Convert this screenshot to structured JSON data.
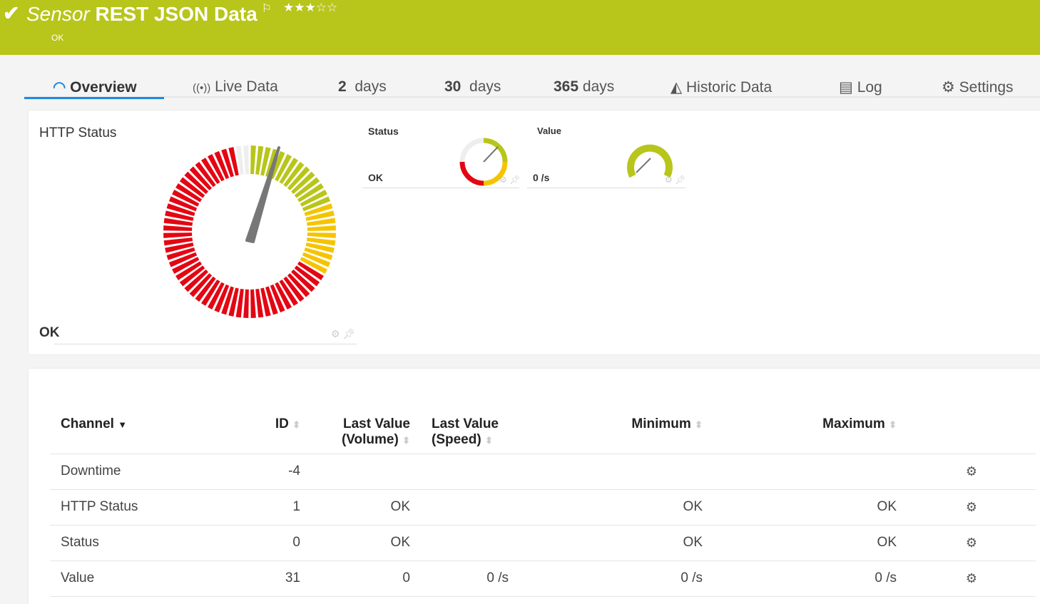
{
  "header": {
    "status_icon": "check-icon",
    "title_prefix": "Sensor",
    "title": "REST JSON Data",
    "flag_icon": "flag-icon",
    "rating": 3,
    "rating_max": 5,
    "rating_text": "★★★☆☆",
    "status": "OK",
    "color": "#b8c51a"
  },
  "tabs": [
    {
      "label": "Overview",
      "icon": "gauge-icon",
      "active": true
    },
    {
      "label": "Live Data",
      "icon": "broadcast-icon"
    },
    {
      "num": "2",
      "label": "days"
    },
    {
      "num": "30",
      "label": "days"
    },
    {
      "num": "365",
      "label": "days"
    },
    {
      "label": "Historic Data",
      "icon": "area-chart-icon"
    },
    {
      "label": "Log",
      "icon": "list-icon"
    },
    {
      "label": "Settings",
      "icon": "gear-icon"
    }
  ],
  "gauges": {
    "main": {
      "title": "HTTP Status",
      "value": "OK"
    },
    "status": {
      "title": "Status",
      "value": "OK"
    },
    "value": {
      "title": "Value",
      "value": "0 /s"
    }
  },
  "table": {
    "headers": [
      "Channel",
      "ID",
      "Last Value (Volume)",
      "Last Value (Speed)",
      "Minimum",
      "Maximum"
    ],
    "rows": [
      {
        "channel": "Downtime",
        "id": "-4",
        "volume": "",
        "speed": "",
        "min": "",
        "max": ""
      },
      {
        "channel": "HTTP Status",
        "id": "1",
        "volume": "OK",
        "speed": "",
        "min": "OK",
        "max": "OK"
      },
      {
        "channel": "Status",
        "id": "0",
        "volume": "OK",
        "speed": "",
        "min": "OK",
        "max": "OK"
      },
      {
        "channel": "Value",
        "id": "31",
        "volume": "0",
        "speed": "0 /s",
        "min": "0 /s",
        "max": "0 /s"
      }
    ]
  },
  "colors": {
    "accent": "#1e88e5",
    "green": "#b8c51a",
    "yellow": "#f5c400",
    "red": "#e30613"
  }
}
